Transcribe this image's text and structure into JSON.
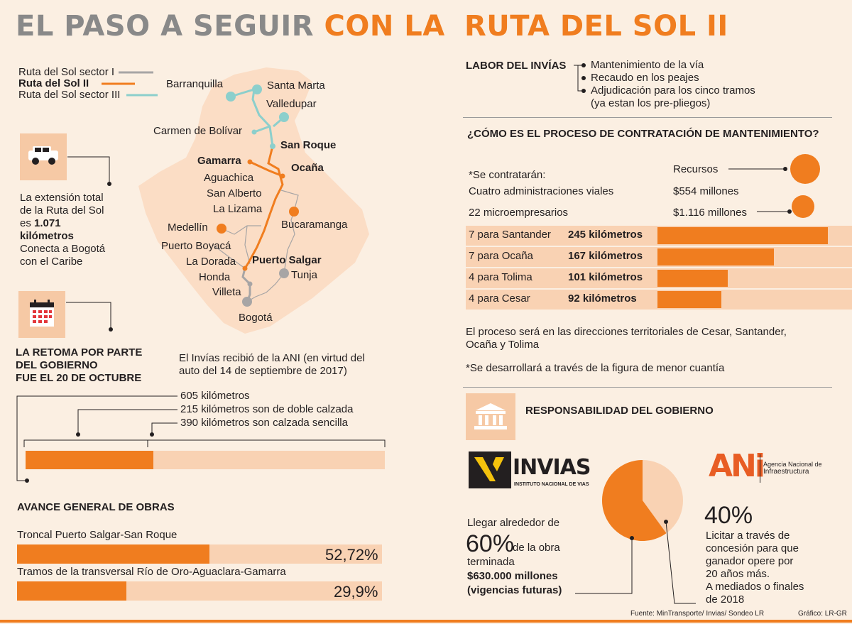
{
  "header": {
    "title_grey": "EL PASO A SEGUIR",
    "title_orange": "CON LA",
    "title_right": "RUTA DEL SOL II"
  },
  "legend": {
    "sector1": "Ruta del Sol sector I",
    "sector2": "Ruta del Sol II",
    "sector3": "Ruta del Sol sector III"
  },
  "map": {
    "cities": {
      "barranquilla": "Barranquilla",
      "santa_marta": "Santa Marta",
      "valledupar": "Valledupar",
      "carmen": "Carmen de Bolívar",
      "san_roque": "San Roque",
      "gamarra": "Gamarra",
      "ocana": "Ocaña",
      "aguachica": "Aguachica",
      "san_alberto": "San Alberto",
      "la_lizama": "La Lizama",
      "medellin": "Medellín",
      "bucaramanga": "Bucaramanga",
      "puerto_boyaca": "Puerto Boyacá",
      "puerto_salgar": "Puerto Salgar",
      "la_dorada": "La Dorada",
      "honda": "Honda",
      "tunja": "Tunja",
      "villeta": "Villeta",
      "bogota": "Bogotá"
    }
  },
  "extension": {
    "line1": "La extensión total",
    "line2": "de la Ruta del Sol",
    "line3_prefix": "es ",
    "line3_bold": "1.071",
    "line4_bold": "kilómetros",
    "line5": "Conecta a Bogotá",
    "line6": "con el Caribe"
  },
  "retoma": {
    "line1": "LA RETOMA POR PARTE",
    "line2": "DEL GOBIERNO",
    "line3": "FUE EL 20 DE OCTUBRE",
    "note1": "El Invías recibió de la ANI (en virtud del",
    "note2": "auto del 14 de septiembre de 2017)"
  },
  "km": {
    "total": "605 kilómetros",
    "double": "215 kilómetros son de doble calzada",
    "single": "390 kilómetros son calzada sencilla",
    "double_fraction": 0.355
  },
  "avance": {
    "title": "AVANCE GENERAL DE OBRAS",
    "items": [
      {
        "label": "Troncal Puerto Salgar-San Roque",
        "value": "52,72%",
        "fraction": 0.5272
      },
      {
        "label": "Tramos de la transversal Río de Oro-Aguaclara-Gamarra",
        "value": "29,9%",
        "fraction": 0.299
      }
    ]
  },
  "labor": {
    "title": "LABOR DEL INVÍAS",
    "items": [
      "Mantenimiento de la vía",
      "Recaudo en los peajes",
      "Adjudicación para los cinco tramos",
      "(ya estan los pre-pliegos)"
    ]
  },
  "proceso": {
    "title": "¿CÓMO ES EL PROCESO DE CONTRATACIÓN DE MANTENIMIENTO?",
    "se_contrataran": "*Se contratarán:",
    "recursos": "Recursos",
    "admin": "Cuatro administraciones viales",
    "admin_value": "$554 millones",
    "micro": "22 microempresarios",
    "micro_value": "$1.116 millones",
    "bars": [
      {
        "label": "7 para Santander",
        "km": "245 kilómetros",
        "value": 245
      },
      {
        "label": "7 para Ocaña",
        "km": "167 kilómetros",
        "value": 167
      },
      {
        "label": "4 para Tolima",
        "km": "101 kilómetros",
        "value": 101
      },
      {
        "label": "4 para Cesar",
        "km": "92 kilómetros",
        "value": 92
      }
    ],
    "note1": "El proceso será en las direcciones territoriales de Cesar, Santander,",
    "note2": "Ocaña y Tolima",
    "note3": "*Se desarrollará a través de la figura de menor cuantía"
  },
  "gobierno": {
    "title": "RESPONSABILIDAD DEL GOBIERNO",
    "invias_logo": "INVIAS",
    "invias_sub": "INSTITUTO NACIONAL DE VIAS",
    "ani_logo": "ANi",
    "ani_sub1": "Agencia Nacional de",
    "ani_sub2": "Infraestructura",
    "left_pre": "Llegar alrededor de",
    "left_pct": "60%",
    "left_post": "de la obra",
    "left_post2": "terminada",
    "left_money": "$630.000 millones",
    "left_money2": "(vigencias futuras)",
    "right_pct": "40%",
    "right_lines": [
      "Licitar a través de",
      "concesión para que",
      "ganador opere por",
      "20 años más.",
      "A mediados o finales",
      "de 2018"
    ],
    "pie_fraction": 0.6
  },
  "footer": {
    "source": "Fuente: MinTransporte/ Invias/ Sondeo LR",
    "credit": "Gráfico: LR-GR"
  },
  "colors": {
    "orange": "#f07d1f",
    "light": "#f9d2b3",
    "teal": "#8ccfcc",
    "grey": "#a7a5a5"
  }
}
